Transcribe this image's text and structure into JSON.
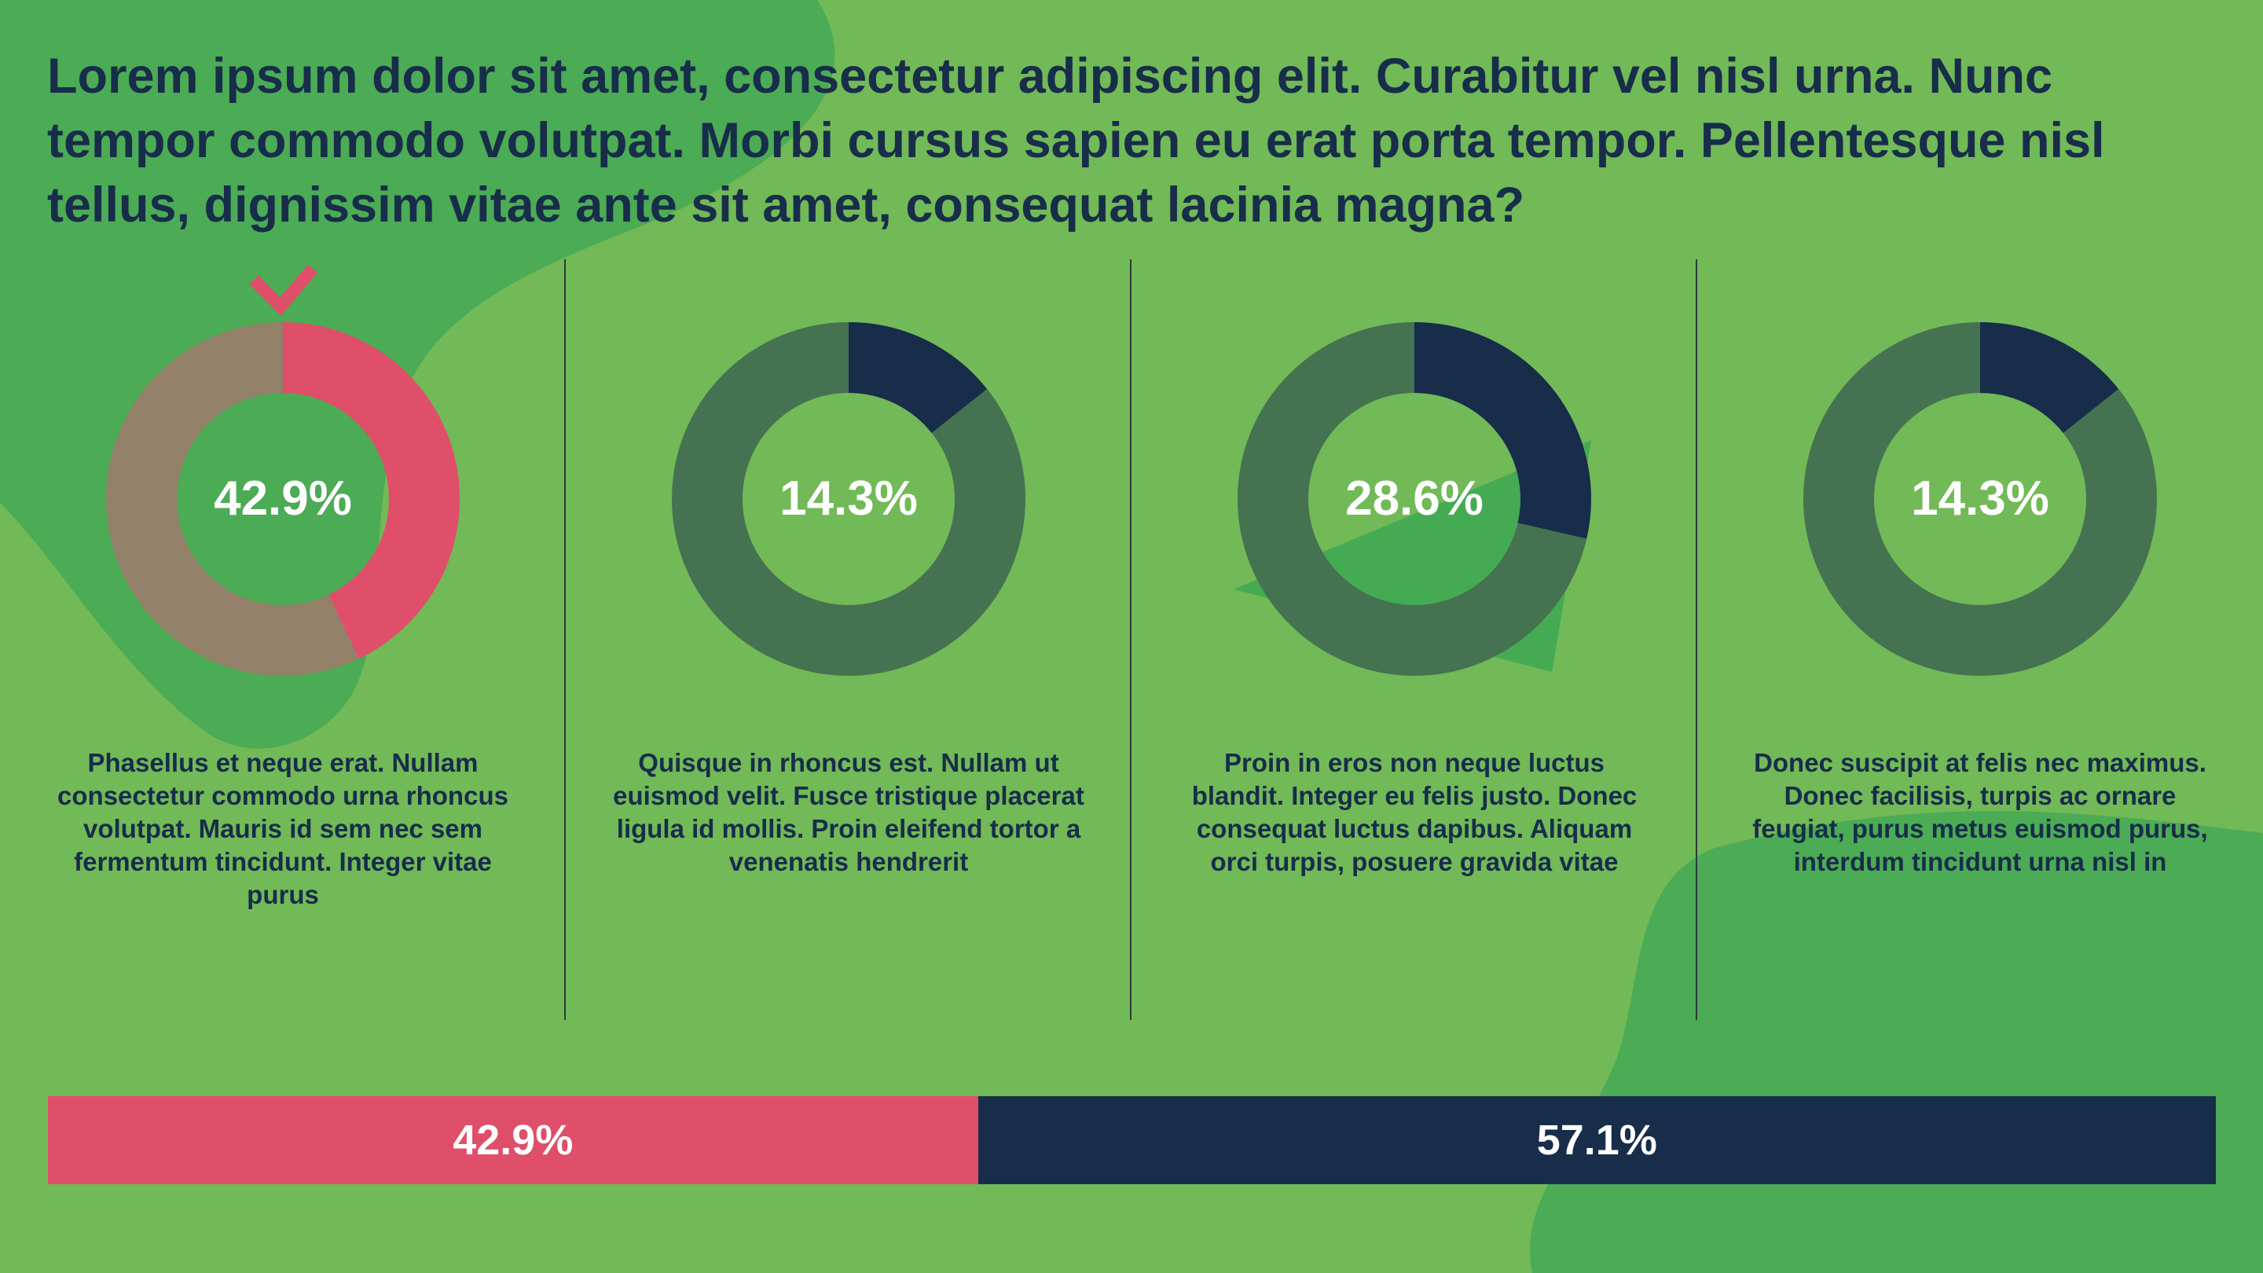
{
  "question": "Lorem ipsum dolor sit amet, consectetur adipiscing elit. Curabitur vel nisl urna. Nunc tempor commodo volutpat. Morbi cursus sapien eu erat porta tempor. Pellentesque nisl tellus, dignissim vitae ante sit amet, consequat lacinia magna?",
  "colors": {
    "background": "#72b957",
    "blob": "#4cab55",
    "correct": "#df4f6a",
    "navy": "#172d4a",
    "donut_track": "#457251",
    "correct_track": "#938068"
  },
  "chart_data": [
    {
      "type": "pie",
      "options": [
        {
          "percent": 42.9,
          "label": "42.9%",
          "correct": true,
          "selected_icon": "checkmark-icon",
          "text": "Phasellus et neque erat. Nullam consectetur commodo urna rhoncus volutpat. Mauris id sem nec sem fermentum tincidunt. Integer vitae purus"
        },
        {
          "percent": 14.3,
          "label": "14.3%",
          "correct": false,
          "text": "Quisque in rhoncus est. Nullam ut euismod velit. Fusce tristique placerat ligula id mollis. Proin eleifend tortor a venenatis hendrerit"
        },
        {
          "percent": 28.6,
          "label": "28.6%",
          "correct": false,
          "text": "Proin in eros non neque luctus blandit. Integer eu felis justo. Donec consequat luctus dapibus. Aliquam orci turpis, posuere gravida vitae"
        },
        {
          "percent": 14.3,
          "label": "14.3%",
          "correct": false,
          "text": "Donec suscipit at felis nec maximus. Donec facilisis, turpis ac ornare feugiat, purus metus euismod purus, interdum tincidunt urna nisl in"
        }
      ]
    },
    {
      "type": "bar",
      "orientation": "horizontal-stacked",
      "segments": [
        {
          "value": 42.9,
          "label": "42.9%",
          "color": "#df4f6a"
        },
        {
          "value": 57.1,
          "label": "57.1%",
          "color": "#172d4a"
        }
      ]
    }
  ]
}
